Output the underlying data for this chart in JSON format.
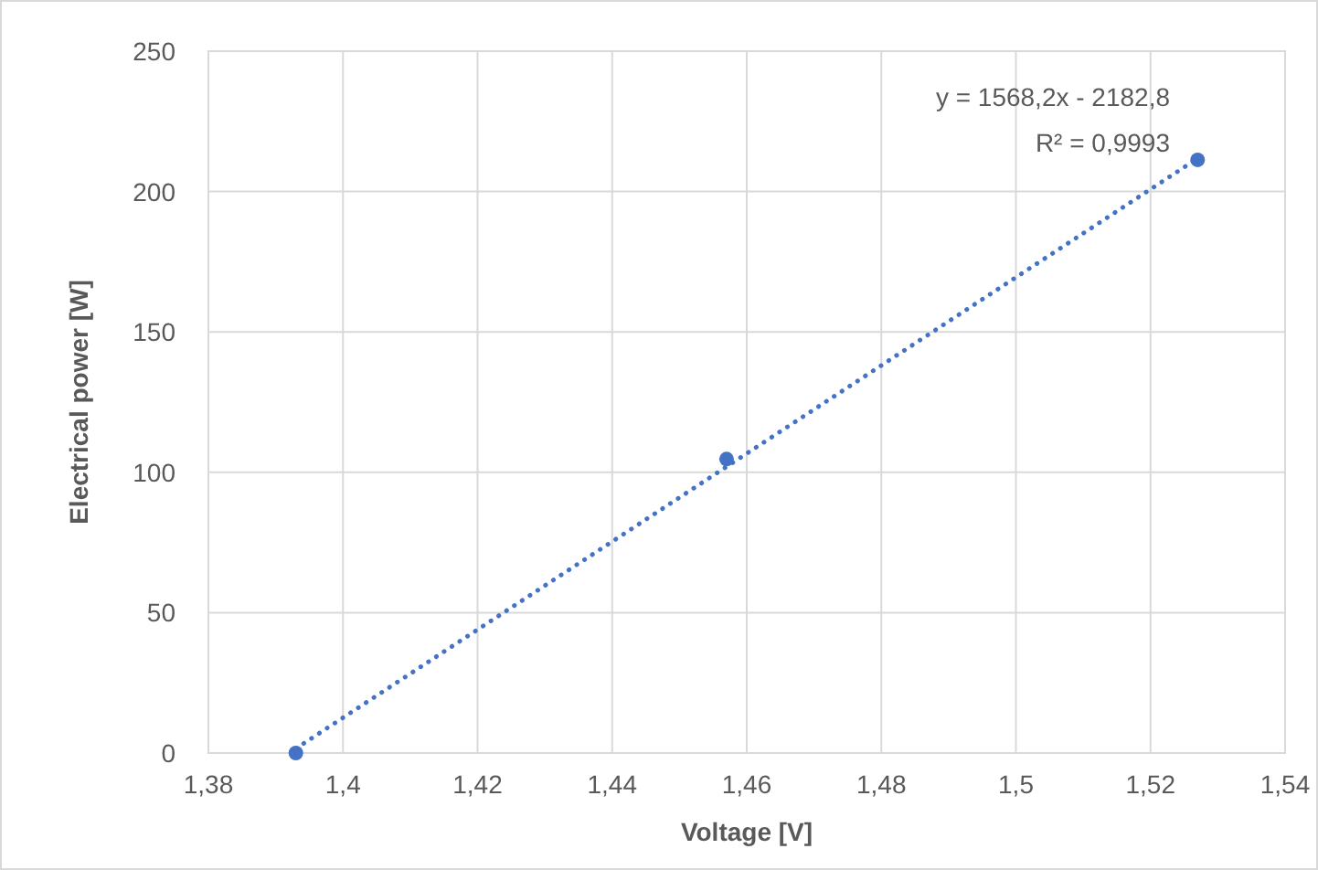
{
  "chart_data": {
    "type": "scatter",
    "xlabel": "Voltage [V]",
    "ylabel": "Electrical power [W]",
    "xlim": [
      1.38,
      1.54
    ],
    "ylim": [
      0,
      250
    ],
    "xticks": [
      {
        "value": 1.38,
        "label": "1,38"
      },
      {
        "value": 1.4,
        "label": "1,4"
      },
      {
        "value": 1.42,
        "label": "1,42"
      },
      {
        "value": 1.44,
        "label": "1,44"
      },
      {
        "value": 1.46,
        "label": "1,46"
      },
      {
        "value": 1.48,
        "label": "1,48"
      },
      {
        "value": 1.5,
        "label": "1,5"
      },
      {
        "value": 1.52,
        "label": "1,52"
      },
      {
        "value": 1.54,
        "label": "1,54"
      }
    ],
    "yticks": [
      0,
      50,
      100,
      150,
      200,
      250
    ],
    "grid": true,
    "series": [
      {
        "color": "#4472c4",
        "marker": "circle",
        "x": [
          1.393,
          1.457,
          1.527
        ],
        "values": [
          0,
          104.7,
          211.3
        ]
      },
      {
        "type": "line",
        "color": "#4472c4",
        "marker": "none",
        "line_style": "dotted",
        "x": [
          1.393,
          1.527
        ],
        "values": [
          1.6,
          211.8
        ]
      }
    ],
    "annotations": [
      "y = 1568,2x - 2182,8",
      "R² = 0,9993"
    ]
  }
}
